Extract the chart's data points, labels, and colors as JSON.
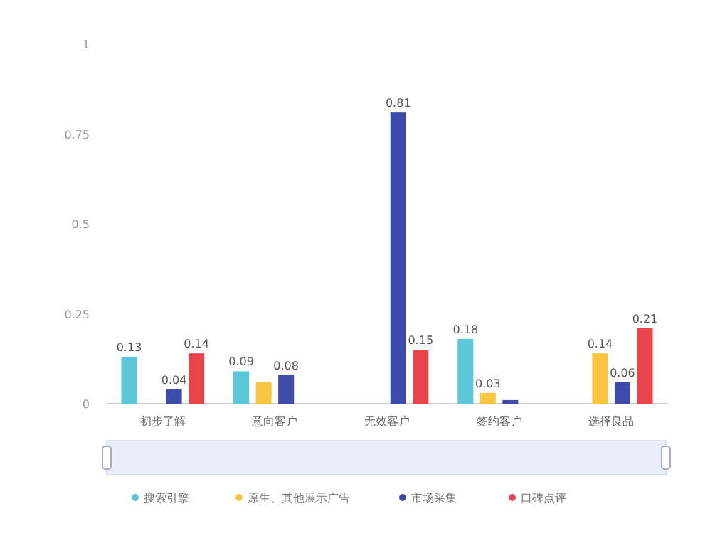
{
  "chart_data": {
    "type": "bar",
    "categories": [
      "初步了解",
      "意向客户",
      "无效客户",
      "签约客户",
      "选择良品"
    ],
    "series": [
      {
        "name": "搜索引擎",
        "color": "#5bc8d8",
        "values": [
          0.13,
          0.09,
          null,
          0.18,
          null
        ],
        "value_labels": [
          "0.13",
          "0.09",
          null,
          "0.18",
          null
        ]
      },
      {
        "name": "原生、其他展示广告",
        "color": "#f9c440",
        "values": [
          null,
          0.06,
          null,
          0.03,
          0.14
        ],
        "value_labels": [
          null,
          null,
          null,
          "0.03",
          "0.14"
        ]
      },
      {
        "name": "市场采集",
        "color": "#3d4bab",
        "values": [
          0.04,
          0.08,
          0.81,
          0.01,
          0.06
        ],
        "value_labels": [
          "0.04",
          "0.08",
          "0.81",
          null,
          "0.06"
        ]
      },
      {
        "name": "口碑点评",
        "color": "#e8454a",
        "values": [
          0.14,
          null,
          0.15,
          null,
          0.21
        ],
        "value_labels": [
          "0.14",
          null,
          "0.15",
          null,
          "0.21"
        ]
      }
    ],
    "ylim": [
      0,
      1
    ],
    "yticks": [
      0,
      0.25,
      0.5,
      0.75,
      1
    ],
    "grid": false,
    "legend": "bottom"
  }
}
